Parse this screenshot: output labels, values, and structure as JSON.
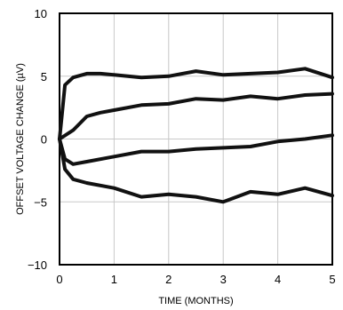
{
  "chart_data": {
    "type": "line",
    "title": "",
    "xlabel": "TIME (MONTHS)",
    "ylabel": "OFFSET VOLTAGE CHANGE (µV)",
    "xlim": [
      0,
      5
    ],
    "ylim": [
      -10,
      10
    ],
    "x_ticks": [
      0,
      1,
      2,
      3,
      4,
      5
    ],
    "y_ticks": [
      -10,
      -5,
      0,
      5,
      10
    ],
    "x_tick_labels": [
      "0",
      "1",
      "2",
      "3",
      "4",
      "5"
    ],
    "y_tick_labels": [
      "−10",
      "−5",
      "0",
      "5",
      "10"
    ],
    "grid": true,
    "legend": "none",
    "line_color": "#111111",
    "grid_color": "#c8c8c8",
    "series": [
      {
        "x": [
          0,
          0.1,
          0.25,
          0.5,
          0.75,
          1.0,
          1.5,
          2.0,
          2.5,
          3.0,
          3.5,
          4.0,
          4.5,
          5.0
        ],
        "values": [
          0,
          4.3,
          4.9,
          5.2,
          5.2,
          5.1,
          4.9,
          5.0,
          5.4,
          5.1,
          5.2,
          5.3,
          5.6,
          4.9
        ]
      },
      {
        "x": [
          0,
          0.25,
          0.5,
          0.75,
          1.0,
          1.5,
          2.0,
          2.5,
          3.0,
          3.5,
          4.0,
          4.5,
          5.0
        ],
        "values": [
          0,
          0.7,
          1.8,
          2.1,
          2.3,
          2.7,
          2.8,
          3.2,
          3.1,
          3.4,
          3.2,
          3.5,
          3.6
        ]
      },
      {
        "x": [
          0,
          0.1,
          0.25,
          0.5,
          1.0,
          1.5,
          2.0,
          2.5,
          3.0,
          3.5,
          4.0,
          4.5,
          5.0
        ],
        "values": [
          0,
          -1.6,
          -2.0,
          -1.8,
          -1.4,
          -1.0,
          -1.0,
          -0.8,
          -0.7,
          -0.6,
          -0.2,
          0.0,
          0.3
        ]
      },
      {
        "x": [
          0,
          0.1,
          0.25,
          0.5,
          1.0,
          1.5,
          2.0,
          2.5,
          3.0,
          3.5,
          4.0,
          4.5,
          5.0
        ],
        "values": [
          0,
          -2.4,
          -3.2,
          -3.5,
          -3.9,
          -4.6,
          -4.4,
          -4.6,
          -5.0,
          -4.2,
          -4.4,
          -3.9,
          -4.5
        ]
      }
    ]
  }
}
